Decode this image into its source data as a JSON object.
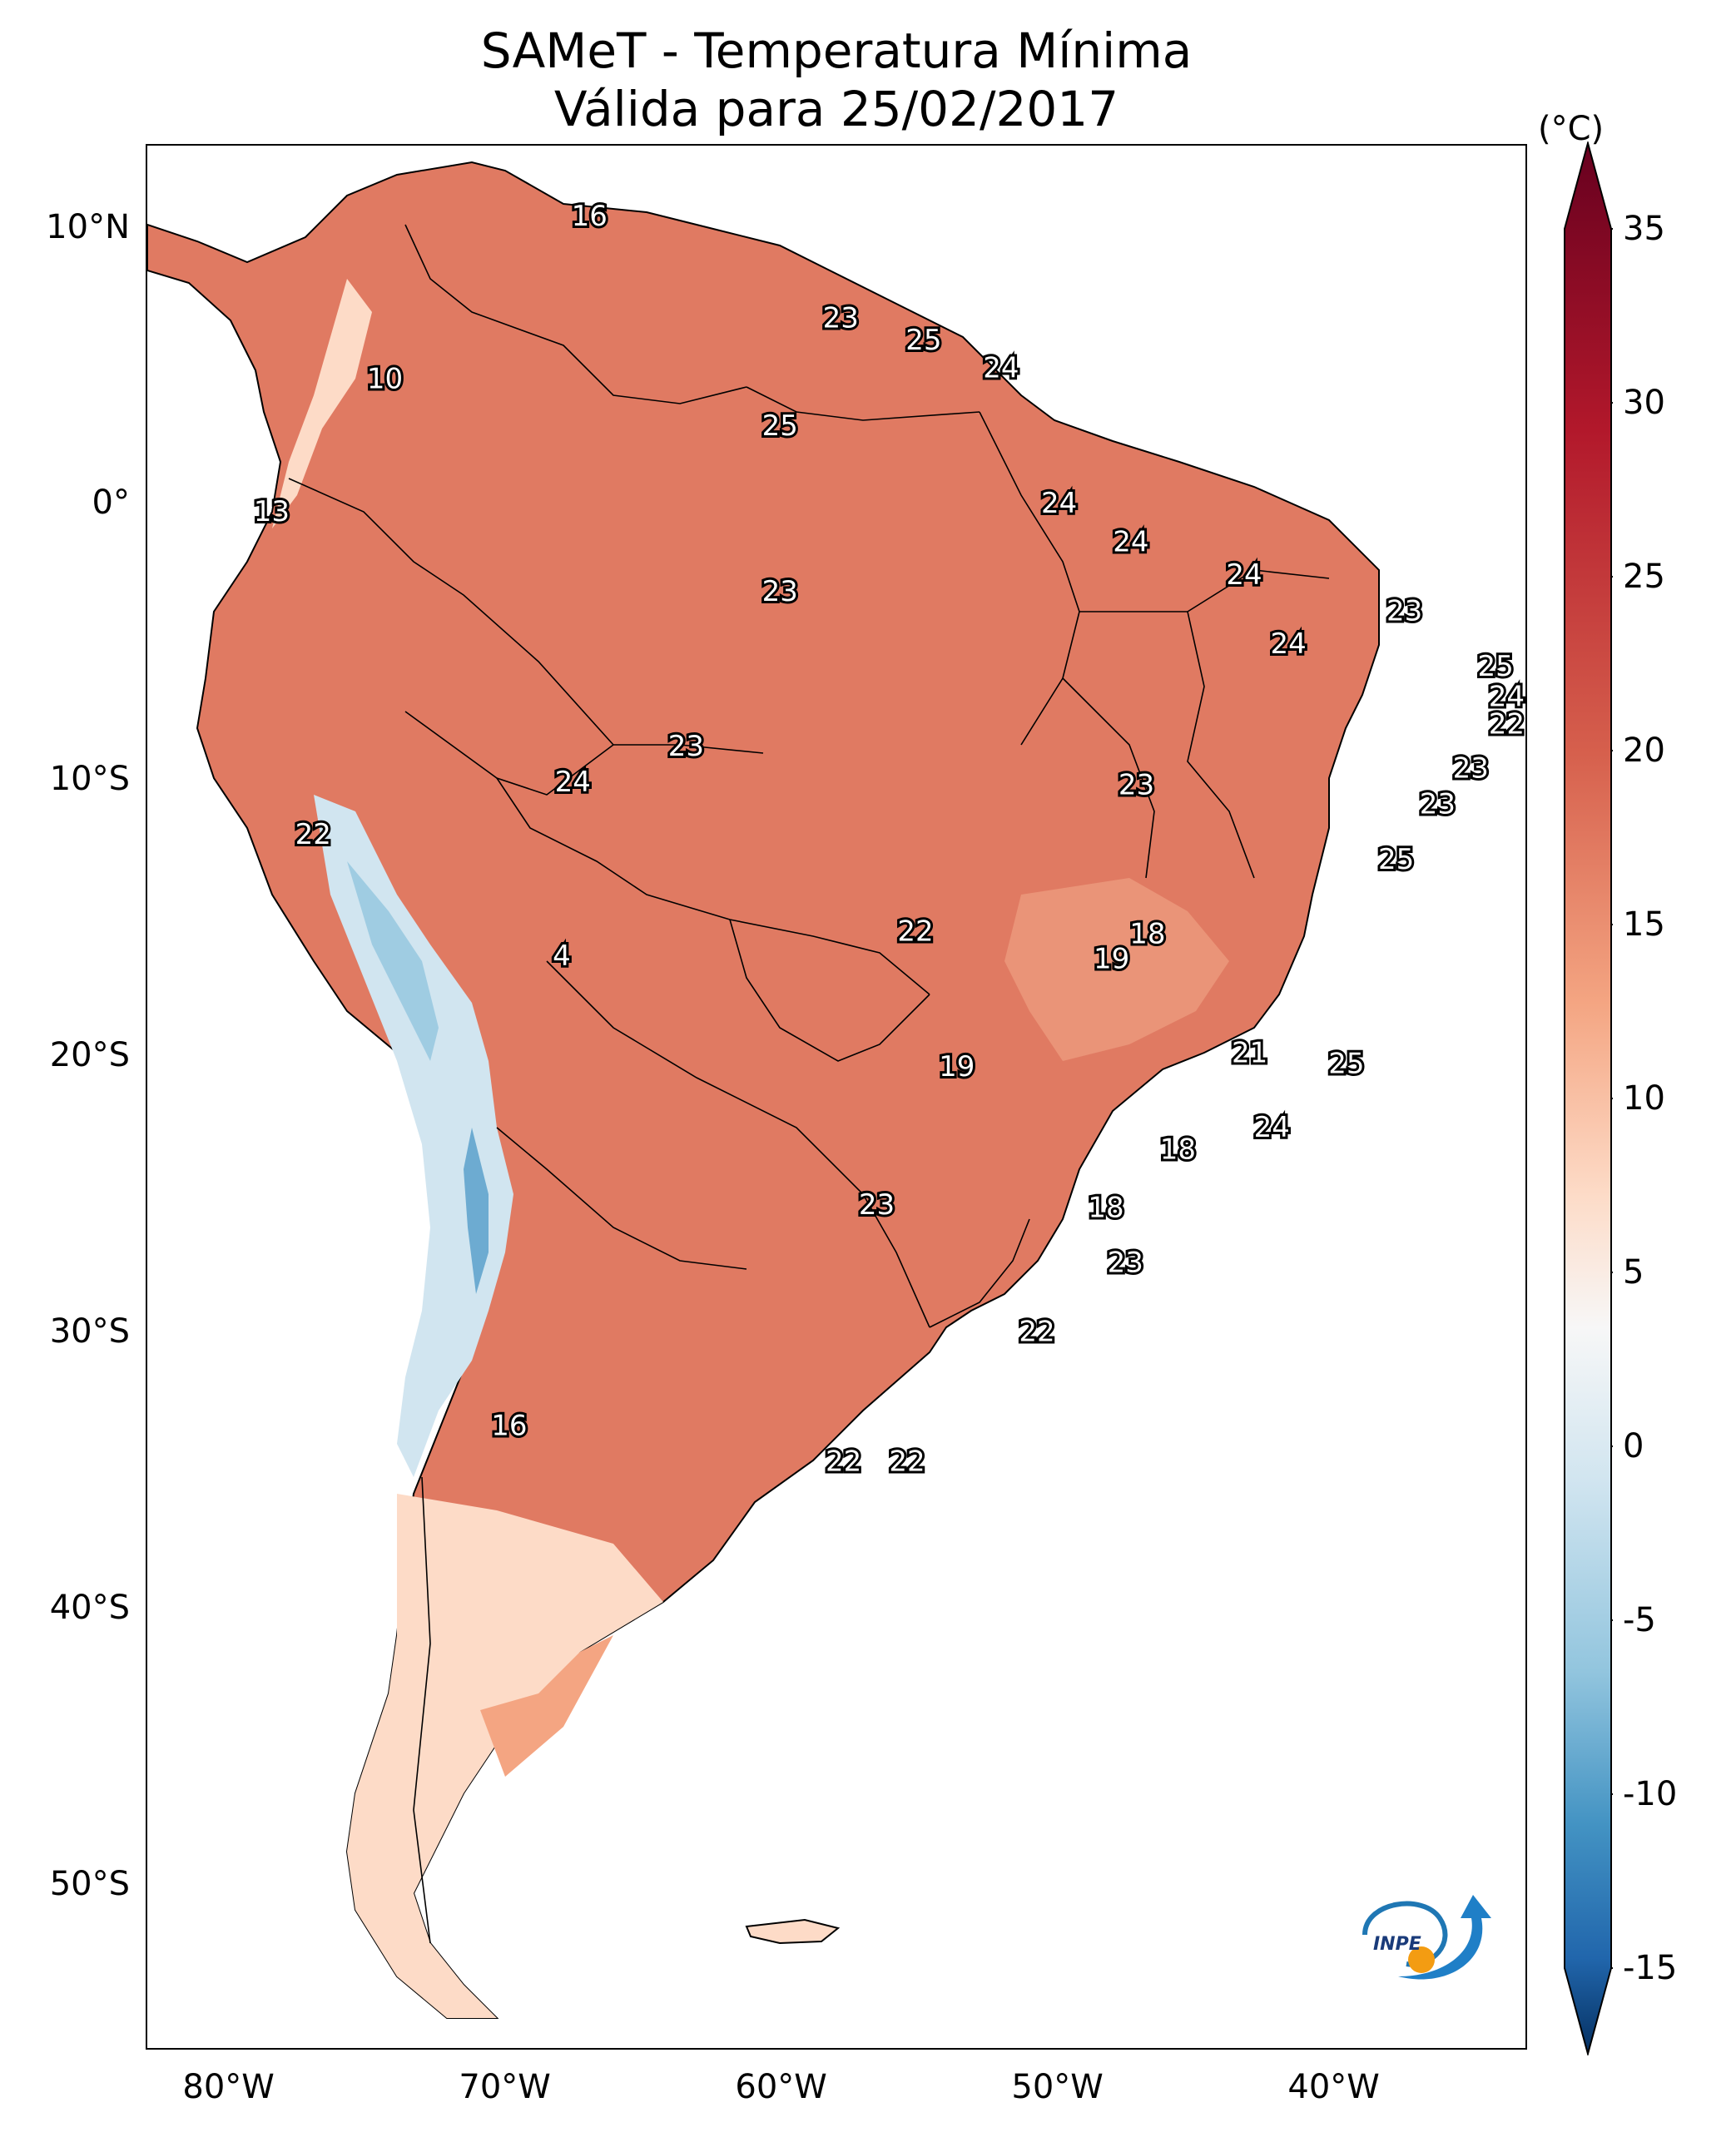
{
  "title": {
    "line1": "SAMeT - Temperatura Mínima",
    "line2": "Válida para 25/02/2017"
  },
  "map": {
    "lon_range": [
      -83,
      -33
    ],
    "lat_range": [
      -56,
      13
    ],
    "lat_ticks": [
      {
        "value": 10,
        "label": "10°N"
      },
      {
        "value": 0,
        "label": "0°"
      },
      {
        "value": -10,
        "label": "10°S"
      },
      {
        "value": -20,
        "label": "20°S"
      },
      {
        "value": -30,
        "label": "30°S"
      },
      {
        "value": -40,
        "label": "40°S"
      },
      {
        "value": -50,
        "label": "50°S"
      }
    ],
    "lon_ticks": [
      {
        "value": -80,
        "label": "80°W"
      },
      {
        "value": -70,
        "label": "70°W"
      },
      {
        "value": -60,
        "label": "60°W"
      },
      {
        "value": -50,
        "label": "50°W"
      },
      {
        "value": -40,
        "label": "40°W"
      }
    ],
    "labels": [
      {
        "text": "16",
        "lon": -67.0,
        "lat": 10.4
      },
      {
        "text": "23",
        "lon": -57.9,
        "lat": 6.7
      },
      {
        "text": "25",
        "lon": -54.9,
        "lat": 5.9
      },
      {
        "text": "24",
        "lon": -52.1,
        "lat": 4.9
      },
      {
        "text": "10",
        "lon": -74.4,
        "lat": 4.5
      },
      {
        "text": "25",
        "lon": -60.1,
        "lat": 2.8
      },
      {
        "text": "24",
        "lon": -50.0,
        "lat": 0.0
      },
      {
        "text": "13",
        "lon": -78.5,
        "lat": -0.3
      },
      {
        "text": "24",
        "lon": -47.4,
        "lat": -1.4
      },
      {
        "text": "24",
        "lon": -43.3,
        "lat": -2.6
      },
      {
        "text": "23",
        "lon": -60.1,
        "lat": -3.2
      },
      {
        "text": "23",
        "lon": -37.5,
        "lat": -3.9
      },
      {
        "text": "24",
        "lon": -41.7,
        "lat": -5.1
      },
      {
        "text": "25",
        "lon": -34.2,
        "lat": -5.9
      },
      {
        "text": "24",
        "lon": -33.8,
        "lat": -7.0
      },
      {
        "text": "22",
        "lon": -33.8,
        "lat": -8.0
      },
      {
        "text": "23",
        "lon": -63.5,
        "lat": -8.8
      },
      {
        "text": "23",
        "lon": -35.1,
        "lat": -9.6
      },
      {
        "text": "24",
        "lon": -67.6,
        "lat": -10.1
      },
      {
        "text": "23",
        "lon": -47.2,
        "lat": -10.2
      },
      {
        "text": "23",
        "lon": -36.3,
        "lat": -10.9
      },
      {
        "text": "22",
        "lon": -77.0,
        "lat": -12.0
      },
      {
        "text": "25",
        "lon": -37.8,
        "lat": -12.9
      },
      {
        "text": "22",
        "lon": -55.2,
        "lat": -15.5
      },
      {
        "text": "18",
        "lon": -46.8,
        "lat": -15.6
      },
      {
        "text": "4",
        "lon": -68.0,
        "lat": -16.4
      },
      {
        "text": "19",
        "lon": -48.1,
        "lat": -16.5
      },
      {
        "text": "21",
        "lon": -43.1,
        "lat": -19.9
      },
      {
        "text": "19",
        "lon": -53.7,
        "lat": -20.4
      },
      {
        "text": "25",
        "lon": -39.6,
        "lat": -20.3
      },
      {
        "text": "24",
        "lon": -42.3,
        "lat": -22.6
      },
      {
        "text": "18",
        "lon": -45.7,
        "lat": -23.4
      },
      {
        "text": "23",
        "lon": -56.6,
        "lat": -25.4
      },
      {
        "text": "18",
        "lon": -48.3,
        "lat": -25.5
      },
      {
        "text": "23",
        "lon": -47.6,
        "lat": -27.5
      },
      {
        "text": "22",
        "lon": -50.8,
        "lat": -30.0
      },
      {
        "text": "16",
        "lon": -69.9,
        "lat": -33.4
      },
      {
        "text": "22",
        "lon": -57.8,
        "lat": -34.7
      },
      {
        "text": "22",
        "lon": -55.5,
        "lat": -34.7
      }
    ]
  },
  "colorbar": {
    "unit": "(°C)",
    "range": [
      -17.5,
      37.5
    ],
    "ticks": [
      {
        "value": 35,
        "label": "35"
      },
      {
        "value": 30,
        "label": "30"
      },
      {
        "value": 25,
        "label": "25"
      },
      {
        "value": 20,
        "label": "20"
      },
      {
        "value": 15,
        "label": "15"
      },
      {
        "value": 10,
        "label": "10"
      },
      {
        "value": 5,
        "label": "5"
      },
      {
        "value": 0,
        "label": "0"
      },
      {
        "value": -5,
        "label": "-5"
      },
      {
        "value": -10,
        "label": "-10"
      },
      {
        "value": -15,
        "label": "-15"
      }
    ],
    "colors": {
      "max": "#67001f",
      "hot": "#b2182b",
      "warm": "#d6604d",
      "mild": "#f4a582",
      "cool": "#fddbc7",
      "neutral": "#f7f7f7",
      "cold1": "#d1e5f0",
      "cold2": "#92c5de",
      "cold3": "#4393c3",
      "cold4": "#2166ac",
      "min": "#053061"
    }
  },
  "logo": {
    "text": "INPE",
    "icon": "inpe-logo-icon"
  }
}
